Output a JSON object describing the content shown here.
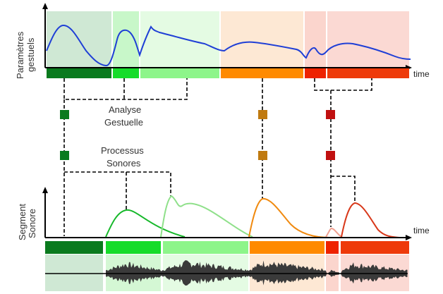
{
  "top_panel": {
    "y_axis_label_line1": "Paramètres",
    "y_axis_label_line2": "gestuels",
    "x_axis_label": "time"
  },
  "middle": {
    "analysis_label_line1": "Analyse",
    "analysis_label_line2": "Gestuelle",
    "process_label_line1": "Processus",
    "process_label_line2": "Sonores"
  },
  "bottom_panel": {
    "y_axis_label_line1": "Segment",
    "y_axis_label_line2": "Sonore",
    "x_axis_label": "time"
  },
  "colors": {
    "dark_green": "#0a7a1e",
    "bright_green": "#16dc2a",
    "light_green": "#8df58a",
    "orange": "#ff8a00",
    "red": "#ee2200",
    "dark_red": "#c01010",
    "ochre": "#c07a10",
    "gesture_curve": "#1f3fd6"
  }
}
